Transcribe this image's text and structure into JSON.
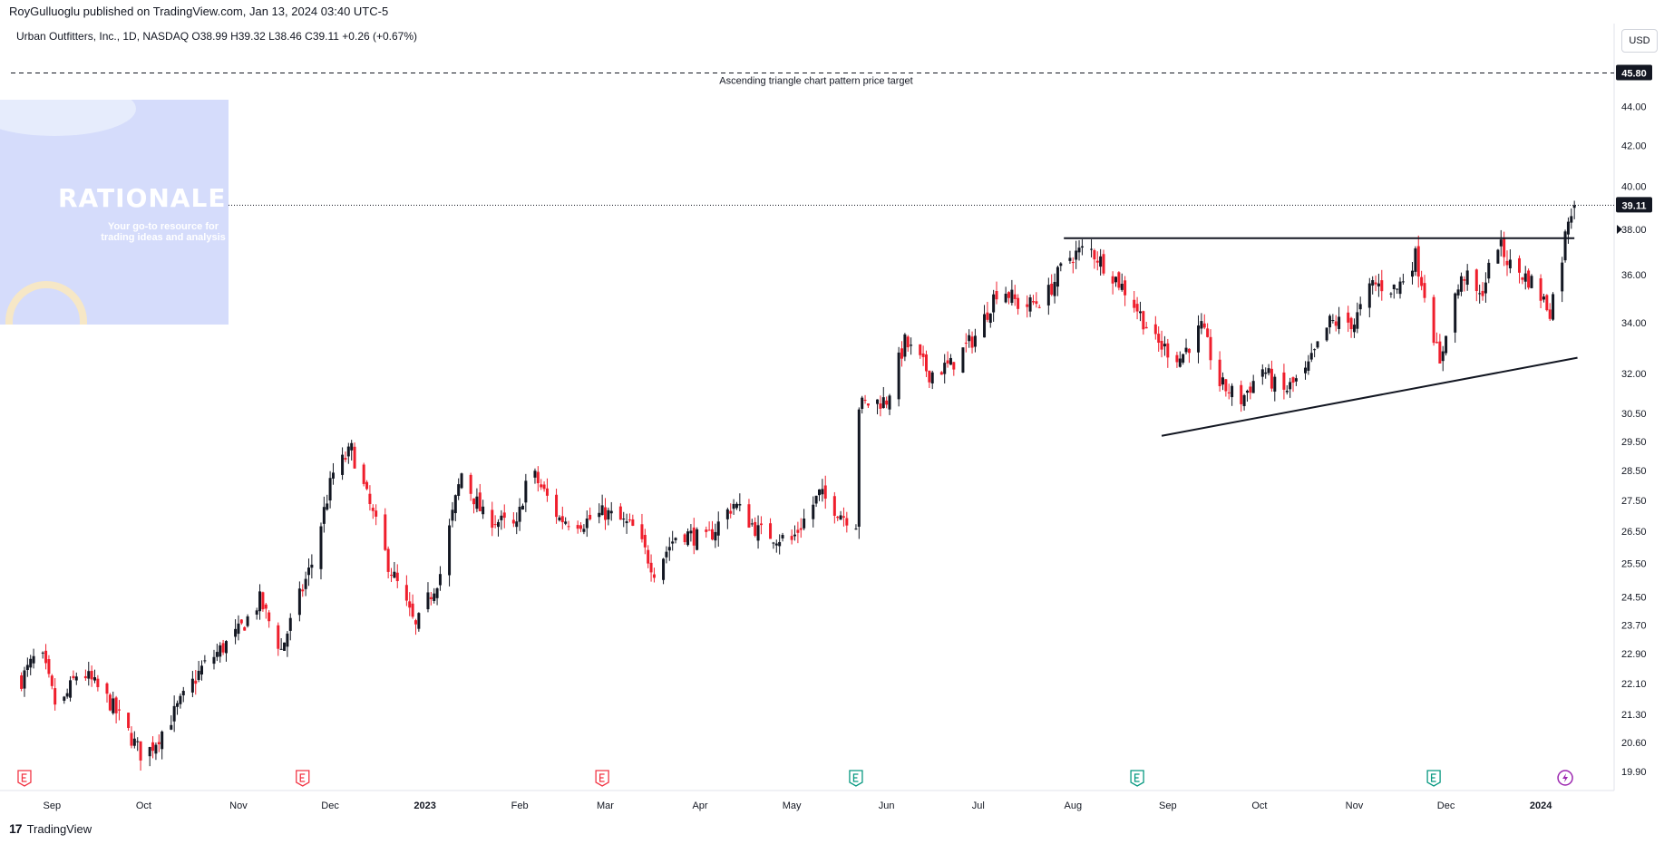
{
  "header": {
    "publisher_line": "RoyGulluoglu published on TradingView.com, Jan 13, 2024 03:40 UTC-5"
  },
  "legend": {
    "text": "Urban Outfitters, Inc., 1D, NASDAQ  O38.99  H39.32  L38.46  C39.11  +0.26 (+0.67%)"
  },
  "currency": "USD",
  "watermark": {
    "title": "RATIONALE",
    "subtitle": "Your go-to resource for trading ideas and analysis"
  },
  "footer": {
    "brand": "TradingView",
    "logo_glyph": "17"
  },
  "colors": {
    "up": "#131722",
    "down": "#ef1e2c",
    "label_bg": "#131722"
  },
  "chart_data": {
    "type": "candlestick",
    "symbol": "Urban Outfitters, Inc.",
    "interval": "1D",
    "exchange": "NASDAQ",
    "y_axis": {
      "scale": "log",
      "ticks": [
        "19.90",
        "20.60",
        "21.30",
        "22.10",
        "22.90",
        "23.70",
        "24.50",
        "25.50",
        "26.50",
        "27.50",
        "28.50",
        "29.50",
        "30.50",
        "32.00",
        "34.00",
        "36.00",
        "38.00",
        "40.00",
        "42.00",
        "44.00"
      ]
    },
    "x_axis_labels": [
      "Sep",
      "Oct",
      "Nov",
      "Dec",
      "2023",
      "Feb",
      "Mar",
      "Apr",
      "May",
      "Jun",
      "Jul",
      "Aug",
      "Sep",
      "Oct",
      "Nov",
      "Dec",
      "2024"
    ],
    "bold_x_labels": [
      "2023",
      "2024"
    ],
    "last_price_label": "39.11",
    "target_price_label": "45.80",
    "target_annotation": "Ascending triangle chart pattern price target",
    "anchors": [
      [
        "2022-08-22",
        22.2
      ],
      [
        "2022-08-28",
        23.0
      ],
      [
        "2022-09-03",
        21.3
      ],
      [
        "2022-09-10",
        22.5
      ],
      [
        "2022-09-20",
        21.6
      ],
      [
        "2022-10-01",
        20.2
      ],
      [
        "2022-10-10",
        21.2
      ],
      [
        "2022-10-20",
        22.5
      ],
      [
        "2022-11-01",
        23.5
      ],
      [
        "2022-11-08",
        24.4
      ],
      [
        "2022-11-15",
        23.0
      ],
      [
        "2022-11-25",
        25.5
      ],
      [
        "2022-12-02",
        28.4
      ],
      [
        "2022-12-08",
        29.2
      ],
      [
        "2022-12-13",
        27.6
      ],
      [
        "2022-12-20",
        25.5
      ],
      [
        "2022-12-29",
        23.6
      ],
      [
        "2023-01-06",
        25.2
      ],
      [
        "2023-01-13",
        28.4
      ],
      [
        "2023-01-20",
        27.0
      ],
      [
        "2023-01-31",
        26.6
      ],
      [
        "2023-02-04",
        28.6
      ],
      [
        "2023-02-14",
        26.9
      ],
      [
        "2023-02-22",
        26.8
      ],
      [
        "2023-03-01",
        27.1
      ],
      [
        "2023-03-10",
        26.6
      ],
      [
        "2023-03-17",
        25.3
      ],
      [
        "2023-03-25",
        26.5
      ],
      [
        "2023-04-03",
        26.2
      ],
      [
        "2023-04-12",
        27.4
      ],
      [
        "2023-04-20",
        26.5
      ],
      [
        "2023-05-01",
        26.2
      ],
      [
        "2023-05-10",
        27.7
      ],
      [
        "2023-05-18",
        27.0
      ],
      [
        "2023-05-22",
        26.8
      ],
      [
        "2023-05-23",
        30.8
      ],
      [
        "2023-06-01",
        31.0
      ],
      [
        "2023-06-07",
        33.2
      ],
      [
        "2023-06-15",
        32.0
      ],
      [
        "2023-06-22",
        32.3
      ],
      [
        "2023-07-01",
        33.6
      ],
      [
        "2023-07-08",
        35.6
      ],
      [
        "2023-07-15",
        34.6
      ],
      [
        "2023-07-23",
        35.0
      ],
      [
        "2023-07-30",
        36.7
      ],
      [
        "2023-08-06",
        37.2
      ],
      [
        "2023-08-14",
        36.0
      ],
      [
        "2023-08-20",
        35.0
      ],
      [
        "2023-08-28",
        33.2
      ],
      [
        "2023-09-05",
        32.6
      ],
      [
        "2023-09-12",
        33.8
      ],
      [
        "2023-09-18",
        31.6
      ],
      [
        "2023-09-25",
        31.0
      ],
      [
        "2023-10-02",
        32.2
      ],
      [
        "2023-10-08",
        31.2
      ],
      [
        "2023-10-16",
        32.0
      ],
      [
        "2023-10-24",
        34.0
      ],
      [
        "2023-11-01",
        34.0
      ],
      [
        "2023-11-07",
        35.6
      ],
      [
        "2023-11-15",
        35.4
      ],
      [
        "2023-11-21",
        36.8
      ],
      [
        "2023-11-26",
        34.2
      ],
      [
        "2023-11-29",
        32.2
      ],
      [
        "2023-12-02",
        34.5
      ],
      [
        "2023-12-07",
        36.0
      ],
      [
        "2023-12-12",
        35.0
      ],
      [
        "2023-12-18",
        37.4
      ],
      [
        "2023-12-22",
        36.4
      ],
      [
        "2023-12-29",
        35.7
      ],
      [
        "2024-01-04",
        34.5
      ],
      [
        "2024-01-08",
        36.8
      ],
      [
        "2024-01-10",
        38.6
      ],
      [
        "2024-01-12",
        39.11
      ]
    ],
    "trendlines": [
      {
        "name": "resistance",
        "from": [
          "2023-07-29",
          37.6
        ],
        "to": [
          "2024-01-12",
          37.6
        ]
      },
      {
        "name": "support",
        "from": [
          "2023-08-30",
          29.7
        ],
        "to": [
          "2024-01-13",
          32.6
        ]
      }
    ],
    "earnings_markers": [
      {
        "date": "2022-08-23",
        "type": "E-past"
      },
      {
        "date": "2022-11-22",
        "type": "E-past"
      },
      {
        "date": "2023-02-28",
        "type": "E-past"
      },
      {
        "date": "2023-05-22",
        "type": "E-recent"
      },
      {
        "date": "2023-08-22",
        "type": "E-recent"
      },
      {
        "date": "2023-11-27",
        "type": "E-recent"
      },
      {
        "date": "2024-01-09",
        "type": "Event"
      }
    ]
  }
}
